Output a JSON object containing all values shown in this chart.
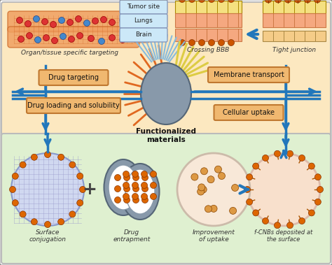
{
  "bg_top_color": "#fce8c0",
  "bg_bottom_color": "#dff0d0",
  "arrow_color": "#2277bb",
  "label_box_color": "#f0b870",
  "label_box_edge": "#c07830",
  "top_labels": [
    "Tumor site",
    "Lungs",
    "Brain"
  ],
  "bottom_labels_left": [
    "Surface\nconjugation",
    "Drug\nentrapment"
  ],
  "bottom_labels_right": [
    "Improvement\nof uptake",
    "f-CNBs deposited at\nthe surface"
  ],
  "top_left_label": "Organ/tissue specific targeting",
  "top_right_label1": "Crossing BBB",
  "top_right_label2": "Tight junction",
  "center_label": "Functionalized\nmaterials",
  "left_labels": [
    "Drug targeting",
    "Drug loading and solubility"
  ],
  "right_labels": [
    "Membrane transport",
    "Cellular uptake"
  ]
}
